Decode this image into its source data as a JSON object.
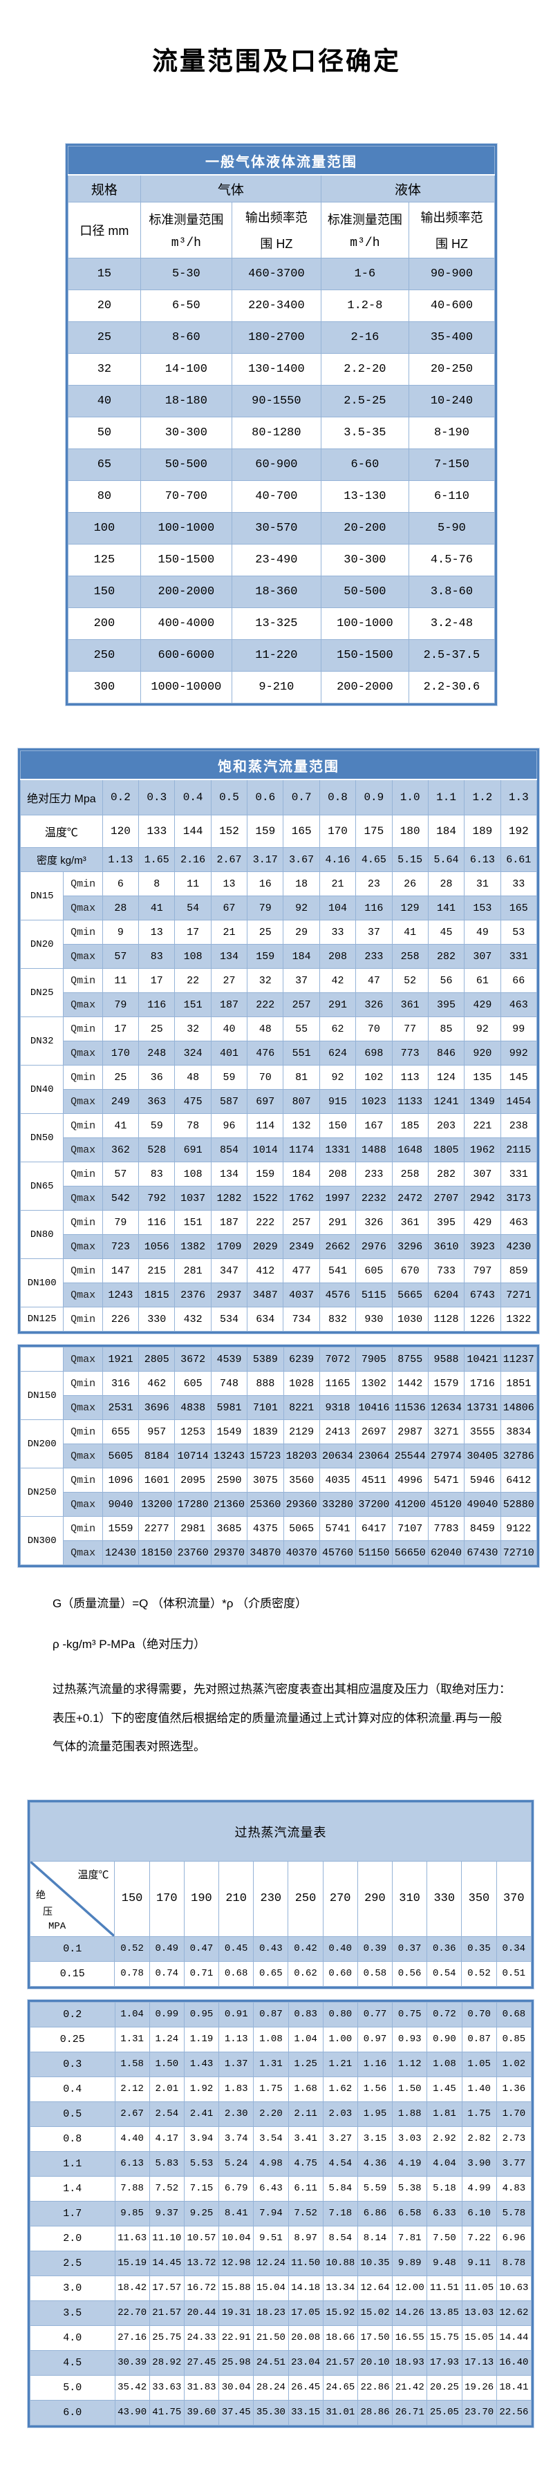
{
  "page": {
    "title": "流量范围及口径确定"
  },
  "colors": {
    "accent_blue": "#4f81bd",
    "light_blue": "#b9cde5",
    "grid_line": "#95b3d7",
    "text": "#000000"
  },
  "table1": {
    "title": "一般气体液体流量范围",
    "groups": {
      "spec": "规格",
      "gas": "气体",
      "liquid": "液体"
    },
    "sub": {
      "diameter": "口径 mm",
      "range_l1": "标准测量范围",
      "range_l2": "m³/h",
      "freq_l1": "输出频率范",
      "freq_l2": "围 HZ"
    },
    "rows": [
      [
        "15",
        "5-30",
        "460-3700",
        "1-6",
        "90-900"
      ],
      [
        "20",
        "6-50",
        "220-3400",
        "1.2-8",
        "40-600"
      ],
      [
        "25",
        "8-60",
        "180-2700",
        "2-16",
        "35-400"
      ],
      [
        "32",
        "14-100",
        "130-1400",
        "2.2-20",
        "20-250"
      ],
      [
        "40",
        "18-180",
        "90-1550",
        "2.5-25",
        "10-240"
      ],
      [
        "50",
        "30-300",
        "80-1280",
        "3.5-35",
        "8-190"
      ],
      [
        "65",
        "50-500",
        "60-900",
        "6-60",
        "7-150"
      ],
      [
        "80",
        "70-700",
        "40-700",
        "13-130",
        "6-110"
      ],
      [
        "100",
        "100-1000",
        "30-570",
        "20-200",
        "5-90"
      ],
      [
        "125",
        "150-1500",
        "23-490",
        "30-300",
        "4.5-76"
      ],
      [
        "150",
        "200-2000",
        "18-360",
        "50-500",
        "3.8-60"
      ],
      [
        "200",
        "400-4000",
        "13-325",
        "100-1000",
        "3.2-48"
      ],
      [
        "250",
        "600-6000",
        "11-220",
        "150-1500",
        "2.5-37.5"
      ],
      [
        "300",
        "1000-10000",
        "9-210",
        "200-2000",
        "2.2-30.6"
      ]
    ]
  },
  "table2": {
    "title": "饱和蒸汽流量范围",
    "qmin_label": "Qmin",
    "qmax_label": "Qmax",
    "header": {
      "pressure_label": "绝对压力 Mpa",
      "pressure_values": [
        "0.2",
        "0.3",
        "0.4",
        "0.5",
        "0.6",
        "0.7",
        "0.8",
        "0.9",
        "1.0",
        "1.1",
        "1.2",
        "1.3"
      ],
      "temp_label": "温度℃",
      "temp_values": [
        "120",
        "133",
        "144",
        "152",
        "159",
        "165",
        "170",
        "175",
        "180",
        "184",
        "189",
        "192"
      ],
      "density_label": "密度 kg/m³",
      "density_values": [
        "1.13",
        "1.65",
        "2.16",
        "2.67",
        "3.17",
        "3.67",
        "4.16",
        "4.65",
        "5.15",
        "5.64",
        "6.13",
        "6.61"
      ]
    },
    "blockA": [
      {
        "dn": "DN15",
        "qmin": [
          "6",
          "8",
          "11",
          "13",
          "16",
          "18",
          "21",
          "23",
          "26",
          "28",
          "31",
          "33"
        ],
        "qmax": [
          "28",
          "41",
          "54",
          "67",
          "79",
          "92",
          "104",
          "116",
          "129",
          "141",
          "153",
          "165"
        ]
      },
      {
        "dn": "DN20",
        "qmin": [
          "9",
          "13",
          "17",
          "21",
          "25",
          "29",
          "33",
          "37",
          "41",
          "45",
          "49",
          "53"
        ],
        "qmax": [
          "57",
          "83",
          "108",
          "134",
          "159",
          "184",
          "208",
          "233",
          "258",
          "282",
          "307",
          "331"
        ]
      },
      {
        "dn": "DN25",
        "qmin": [
          "11",
          "17",
          "22",
          "27",
          "32",
          "37",
          "42",
          "47",
          "52",
          "56",
          "61",
          "66"
        ],
        "qmax": [
          "79",
          "116",
          "151",
          "187",
          "222",
          "257",
          "291",
          "326",
          "361",
          "395",
          "429",
          "463"
        ]
      },
      {
        "dn": "DN32",
        "qmin": [
          "17",
          "25",
          "32",
          "40",
          "48",
          "55",
          "62",
          "70",
          "77",
          "85",
          "92",
          "99"
        ],
        "qmax": [
          "170",
          "248",
          "324",
          "401",
          "476",
          "551",
          "624",
          "698",
          "773",
          "846",
          "920",
          "992"
        ]
      },
      {
        "dn": "DN40",
        "qmin": [
          "25",
          "36",
          "48",
          "59",
          "70",
          "81",
          "92",
          "102",
          "113",
          "124",
          "135",
          "145"
        ],
        "qmax": [
          "249",
          "363",
          "475",
          "587",
          "697",
          "807",
          "915",
          "1023",
          "1133",
          "1241",
          "1349",
          "1454"
        ]
      },
      {
        "dn": "DN50",
        "qmin": [
          "41",
          "59",
          "78",
          "96",
          "114",
          "132",
          "150",
          "167",
          "185",
          "203",
          "221",
          "238"
        ],
        "qmax": [
          "362",
          "528",
          "691",
          "854",
          "1014",
          "1174",
          "1331",
          "1488",
          "1648",
          "1805",
          "1962",
          "2115"
        ]
      },
      {
        "dn": "DN65",
        "qmin": [
          "57",
          "83",
          "108",
          "134",
          "159",
          "184",
          "208",
          "233",
          "258",
          "282",
          "307",
          "331"
        ],
        "qmax": [
          "542",
          "792",
          "1037",
          "1282",
          "1522",
          "1762",
          "1997",
          "2232",
          "2472",
          "2707",
          "2942",
          "3173"
        ]
      },
      {
        "dn": "DN80",
        "qmin": [
          "79",
          "116",
          "151",
          "187",
          "222",
          "257",
          "291",
          "326",
          "361",
          "395",
          "429",
          "463"
        ],
        "qmax": [
          "723",
          "1056",
          "1382",
          "1709",
          "2029",
          "2349",
          "2662",
          "2976",
          "3296",
          "3610",
          "3923",
          "4230"
        ]
      },
      {
        "dn": "DN100",
        "qmin": [
          "147",
          "215",
          "281",
          "347",
          "412",
          "477",
          "541",
          "605",
          "670",
          "733",
          "797",
          "859"
        ],
        "qmax": [
          "1243",
          "1815",
          "2376",
          "2937",
          "3487",
          "4037",
          "4576",
          "5115",
          "5665",
          "6204",
          "6743",
          "7271"
        ]
      },
      {
        "dn": "DN125",
        "qmin": [
          "226",
          "330",
          "432",
          "534",
          "634",
          "734",
          "832",
          "930",
          "1030",
          "1128",
          "1226",
          "1322"
        ]
      }
    ],
    "blockB": [
      {
        "dn": "",
        "qmax": [
          "1921",
          "2805",
          "3672",
          "4539",
          "5389",
          "6239",
          "7072",
          "7905",
          "8755",
          "9588",
          "10421",
          "11237"
        ]
      },
      {
        "dn": "DN150",
        "qmin": [
          "316",
          "462",
          "605",
          "748",
          "888",
          "1028",
          "1165",
          "1302",
          "1442",
          "1579",
          "1716",
          "1851"
        ],
        "qmax": [
          "2531",
          "3696",
          "4838",
          "5981",
          "7101",
          "8221",
          "9318",
          "10416",
          "11536",
          "12634",
          "13731",
          "14806"
        ]
      },
      {
        "dn": "DN200",
        "qmin": [
          "655",
          "957",
          "1253",
          "1549",
          "1839",
          "2129",
          "2413",
          "2697",
          "2987",
          "3271",
          "3555",
          "3834"
        ],
        "qmax": [
          "5605",
          "8184",
          "10714",
          "13243",
          "15723",
          "18203",
          "20634",
          "23064",
          "25544",
          "27974",
          "30405",
          "32786"
        ]
      },
      {
        "dn": "DN250",
        "qmin": [
          "1096",
          "1601",
          "2095",
          "2590",
          "3075",
          "3560",
          "4035",
          "4511",
          "4996",
          "5471",
          "5946",
          "6412"
        ],
        "qmax": [
          "9040",
          "13200",
          "17280",
          "21360",
          "25360",
          "29360",
          "33280",
          "37200",
          "41200",
          "45120",
          "49040",
          "52880"
        ]
      },
      {
        "dn": "DN300",
        "qmin": [
          "1559",
          "2277",
          "2981",
          "3685",
          "4375",
          "5065",
          "5741",
          "6417",
          "7107",
          "7783",
          "8459",
          "9122"
        ],
        "qmax": [
          "12430",
          "18150",
          "23760",
          "29370",
          "34870",
          "40370",
          "45760",
          "51150",
          "56650",
          "62040",
          "67430",
          "72710"
        ]
      }
    ]
  },
  "notes": {
    "line1": "G（质量流量）=Q （体积流量）*ρ （介质密度）",
    "line2": "ρ -kg/m³ P-MPa（绝对压力）",
    "para": "过热蒸汽流量的求得需要，先对照过热蒸汽密度表查出其相应温度及压力（取绝对压力：表压+0.1）下的密度值然后根据给定的质量流量通过上式计算对应的体积流量.再与一般气体的流量范围表对照选型。"
  },
  "table3": {
    "title": "过热蒸汽流量表",
    "corner_top": "温度℃",
    "corner_left": [
      "绝",
      "压",
      "MPA"
    ],
    "temp_columns": [
      "150",
      "170",
      "190",
      "210",
      "230",
      "250",
      "270",
      "290",
      "310",
      "330",
      "350",
      "370"
    ],
    "blockC": [
      {
        "p": "0.1",
        "v": [
          "0.52",
          "0.49",
          "0.47",
          "0.45",
          "0.43",
          "0.42",
          "0.40",
          "0.39",
          "0.37",
          "0.36",
          "0.35",
          "0.34"
        ]
      },
      {
        "p": "0.15",
        "v": [
          "0.78",
          "0.74",
          "0.71",
          "0.68",
          "0.65",
          "0.62",
          "0.60",
          "0.58",
          "0.56",
          "0.54",
          "0.52",
          "0.51"
        ]
      }
    ],
    "blockD": [
      {
        "p": "0.2",
        "v": [
          "1.04",
          "0.99",
          "0.95",
          "0.91",
          "0.87",
          "0.83",
          "0.80",
          "0.77",
          "0.75",
          "0.72",
          "0.70",
          "0.68"
        ]
      },
      {
        "p": "0.25",
        "v": [
          "1.31",
          "1.24",
          "1.19",
          "1.13",
          "1.08",
          "1.04",
          "1.00",
          "0.97",
          "0.93",
          "0.90",
          "0.87",
          "0.85"
        ]
      },
      {
        "p": "0.3",
        "v": [
          "1.58",
          "1.50",
          "1.43",
          "1.37",
          "1.31",
          "1.25",
          "1.21",
          "1.16",
          "1.12",
          "1.08",
          "1.05",
          "1.02"
        ]
      },
      {
        "p": "0.4",
        "v": [
          "2.12",
          "2.01",
          "1.92",
          "1.83",
          "1.75",
          "1.68",
          "1.62",
          "1.56",
          "1.50",
          "1.45",
          "1.40",
          "1.36"
        ]
      },
      {
        "p": "0.5",
        "v": [
          "2.67",
          "2.54",
          "2.41",
          "2.30",
          "2.20",
          "2.11",
          "2.03",
          "1.95",
          "1.88",
          "1.81",
          "1.75",
          "1.70"
        ]
      },
      {
        "p": "0.8",
        "v": [
          "4.40",
          "4.17",
          "3.94",
          "3.74",
          "3.54",
          "3.41",
          "3.27",
          "3.15",
          "3.03",
          "2.92",
          "2.82",
          "2.73"
        ]
      },
      {
        "p": "1.1",
        "v": [
          "6.13",
          "5.83",
          "5.53",
          "5.24",
          "4.98",
          "4.75",
          "4.54",
          "4.36",
          "4.19",
          "4.04",
          "3.90",
          "3.77"
        ]
      },
      {
        "p": "1.4",
        "v": [
          "7.88",
          "7.52",
          "7.15",
          "6.79",
          "6.43",
          "6.11",
          "5.84",
          "5.59",
          "5.38",
          "5.18",
          "4.99",
          "4.83"
        ]
      },
      {
        "p": "1.7",
        "v": [
          "9.85",
          "9.37",
          "9.25",
          "8.41",
          "7.94",
          "7.52",
          "7.18",
          "6.86",
          "6.58",
          "6.33",
          "6.10",
          "5.78"
        ]
      },
      {
        "p": "2.0",
        "v": [
          "11.63",
          "11.10",
          "10.57",
          "10.04",
          "9.51",
          "8.97",
          "8.54",
          "8.14",
          "7.81",
          "7.50",
          "7.22",
          "6.96"
        ]
      },
      {
        "p": "2.5",
        "v": [
          "15.19",
          "14.45",
          "13.72",
          "12.98",
          "12.24",
          "11.50",
          "10.88",
          "10.35",
          "9.89",
          "9.48",
          "9.11",
          "8.78"
        ]
      },
      {
        "p": "3.0",
        "v": [
          "18.42",
          "17.57",
          "16.72",
          "15.88",
          "15.04",
          "14.18",
          "13.34",
          "12.64",
          "12.00",
          "11.51",
          "11.05",
          "10.63"
        ]
      },
      {
        "p": "3.5",
        "v": [
          "22.70",
          "21.57",
          "20.44",
          "19.31",
          "18.23",
          "17.05",
          "15.92",
          "15.02",
          "14.26",
          "13.85",
          "13.03",
          "12.62"
        ]
      },
      {
        "p": "4.0",
        "v": [
          "27.16",
          "25.75",
          "24.33",
          "22.91",
          "21.50",
          "20.08",
          "18.66",
          "17.50",
          "16.55",
          "15.75",
          "15.05",
          "14.44"
        ]
      },
      {
        "p": "4.5",
        "v": [
          "30.39",
          "28.92",
          "27.45",
          "25.98",
          "24.51",
          "23.04",
          "21.57",
          "20.10",
          "18.93",
          "17.93",
          "17.13",
          "16.40"
        ]
      },
      {
        "p": "5.0",
        "v": [
          "35.42",
          "33.63",
          "31.83",
          "30.04",
          "28.24",
          "26.45",
          "24.65",
          "22.86",
          "21.42",
          "20.25",
          "19.26",
          "18.41"
        ]
      },
      {
        "p": "6.0",
        "v": [
          "43.90",
          "41.75",
          "39.60",
          "37.45",
          "35.30",
          "33.15",
          "31.01",
          "28.86",
          "26.71",
          "25.05",
          "23.70",
          "22.56"
        ]
      }
    ]
  }
}
